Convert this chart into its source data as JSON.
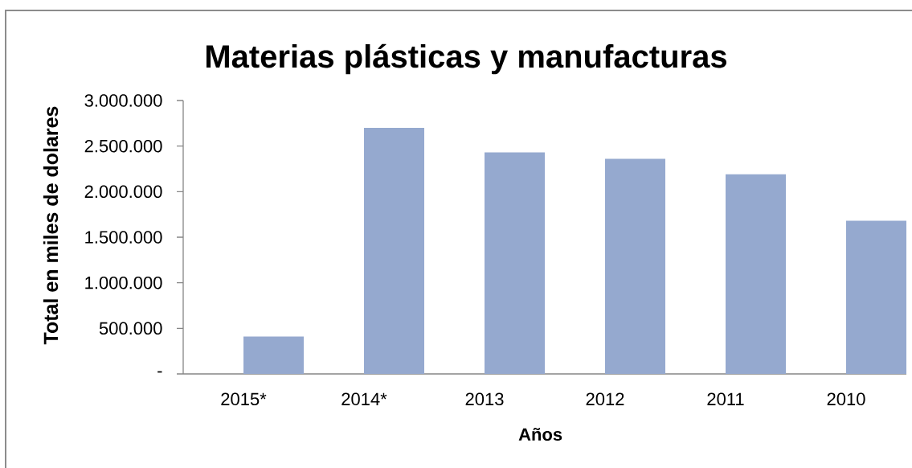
{
  "chart_data": {
    "type": "bar",
    "title": "Materias plásticas y manufacturas",
    "xlabel": "Años",
    "ylabel": "Total en miles de dolares",
    "categories": [
      "2015*",
      "2014*",
      "2013",
      "2012",
      "2011",
      "2010"
    ],
    "values": [
      410000,
      2700000,
      2430000,
      2360000,
      2190000,
      1680000
    ],
    "color": "#95a9cf",
    "ylim": [
      0,
      3000000
    ],
    "yticks": [
      {
        "value": 0,
        "label": "-"
      },
      {
        "value": 500000,
        "label": "500.000"
      },
      {
        "value": 1000000,
        "label": "1.000.000"
      },
      {
        "value": 1500000,
        "label": "1.500.000"
      },
      {
        "value": 2000000,
        "label": "2.000.000"
      },
      {
        "value": 2500000,
        "label": "2.500.000"
      },
      {
        "value": 3000000,
        "label": "3.000.000"
      }
    ]
  }
}
